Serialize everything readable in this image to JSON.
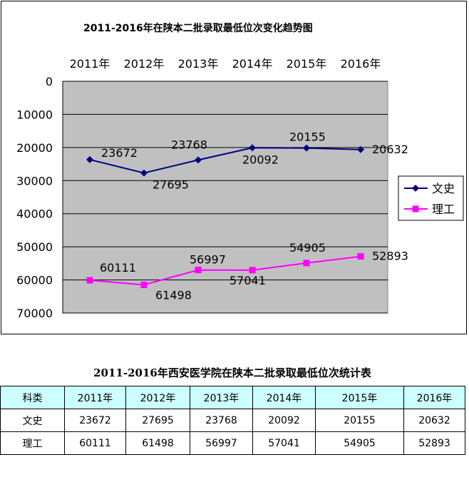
{
  "chart_data": {
    "type": "line",
    "title": "2011-2016年在陕本二批录取最低位次变化趋势图",
    "categories": [
      "2011年",
      "2012年",
      "2013年",
      "2014年",
      "2015年",
      "2016年"
    ],
    "series": [
      {
        "name": "文史",
        "values": [
          23672,
          27695,
          23768,
          20092,
          20155,
          20632
        ],
        "color": "#000080",
        "marker": "diamond"
      },
      {
        "name": "理工",
        "values": [
          60111,
          61498,
          56997,
          57041,
          54905,
          52893
        ],
        "color": "#ff00ff",
        "marker": "square"
      }
    ],
    "ylim": [
      0,
      70000
    ],
    "yticks": [
      "0",
      "10000",
      "20000",
      "30000",
      "40000",
      "50000",
      "60000",
      "70000"
    ],
    "y_reversed": true,
    "x_axis_position": "top",
    "grid": true,
    "plot_background": "#c0c0c0",
    "legend_position": "right"
  },
  "table": {
    "title": "2011-2016年西安医学院在陕本二批录取最低位次统计表",
    "header": [
      "科类",
      "2011年",
      "2012年",
      "2013年",
      "2014年",
      "2015年",
      "2016年"
    ],
    "rows": [
      [
        "文史",
        "23672",
        "27695",
        "23768",
        "20092",
        "20155",
        "20632"
      ],
      [
        "理工",
        "60111",
        "61498",
        "56997",
        "57041",
        "54905",
        "52893"
      ]
    ],
    "header_color": "#ccffff"
  }
}
